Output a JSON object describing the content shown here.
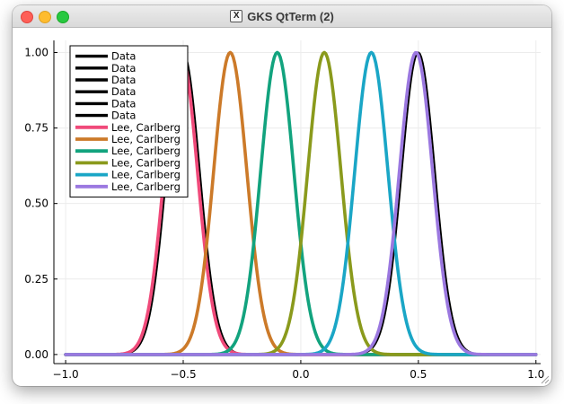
{
  "window": {
    "title": "GKS QtTerm (2)",
    "app_icon": "x11-icon",
    "colors": {
      "close": "#fe5f57",
      "minimize": "#febc2e",
      "maximize": "#28c840"
    }
  },
  "chart_data": {
    "type": "line",
    "title": "",
    "xlabel": "",
    "ylabel": "",
    "xlim": [
      -1.05,
      1.02
    ],
    "ylim": [
      -0.03,
      1.04
    ],
    "xticks": [
      -1.0,
      -0.5,
      0.0,
      0.5,
      1.0
    ],
    "xtick_labels": [
      "−1.0",
      "−0.5",
      "0.0",
      "0.5",
      "1.0"
    ],
    "yticks": [
      0.0,
      0.25,
      0.5,
      0.75,
      1.0
    ],
    "ytick_labels": [
      "0.00",
      "0.25",
      "0.50",
      "0.75",
      "1.00"
    ],
    "x_range": [
      -1.0,
      1.0
    ],
    "grid": true,
    "legend_position": "top-left",
    "series": [
      {
        "name": "Data",
        "color": "#000000",
        "center": -0.5,
        "width": 0.1
      },
      {
        "name": "Data",
        "color": "#000000",
        "center": -0.3,
        "width": 0.1
      },
      {
        "name": "Data",
        "color": "#000000",
        "center": -0.1,
        "width": 0.1
      },
      {
        "name": "Data",
        "color": "#000000",
        "center": 0.1,
        "width": 0.1
      },
      {
        "name": "Data",
        "color": "#000000",
        "center": 0.3,
        "width": 0.1
      },
      {
        "name": "Data",
        "color": "#000000",
        "center": 0.5,
        "width": 0.1
      },
      {
        "name": "Lee, Carlberg",
        "color": "#f04a7a",
        "center": -0.51,
        "width": 0.1
      },
      {
        "name": "Lee, Carlberg",
        "color": "#cc7a29",
        "center": -0.3,
        "width": 0.1
      },
      {
        "name": "Lee, Carlberg",
        "color": "#12a37e",
        "center": -0.1,
        "width": 0.1
      },
      {
        "name": "Lee, Carlberg",
        "color": "#8a9a1c",
        "center": 0.1,
        "width": 0.1
      },
      {
        "name": "Lee, Carlberg",
        "color": "#1aa6c6",
        "center": 0.3,
        "width": 0.1
      },
      {
        "name": "Lee, Carlberg",
        "color": "#9b78e0",
        "center": 0.49,
        "width": 0.1
      }
    ]
  }
}
